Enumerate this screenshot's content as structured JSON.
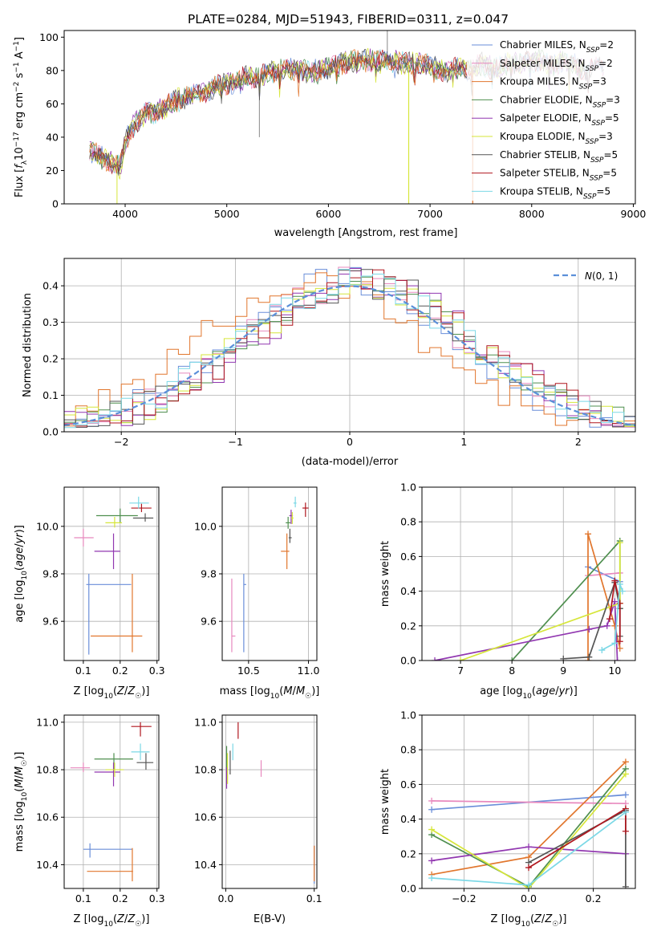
{
  "title": "PLATE=0284, MJD=51943, FIBERID=0311, z=0.047",
  "series_colors": [
    "#6a8ed9",
    "#e889be",
    "#e1762d",
    "#4f8f4f",
    "#9137b0",
    "#d6e63a",
    "#555555",
    "#b0171f",
    "#7bd8e6"
  ],
  "chart_data": [
    {
      "type": "line",
      "name": "spectrum",
      "xlabel": "wavelength [Angstrom, rest frame]",
      "ylabel": "Flux [f_λ 10^-17 erg cm^-2 s^-1 A^-1]",
      "xlim": [
        3400,
        9020
      ],
      "ylim": [
        0,
        104
      ],
      "xticks": [
        4000,
        5000,
        6000,
        7000,
        8000,
        9000
      ],
      "yticks": [
        0,
        20,
        40,
        60,
        80,
        100
      ],
      "grid": false,
      "legend_position": "right",
      "legend": [
        "Chabrier MILES, N_SSP=2",
        "Salpeter MILES, N_SSP=2",
        "Kroupa MILES, N_SSP=3",
        "Chabrier ELODIE, N_SSP=3",
        "Salpeter ELODIE, N_SSP=5",
        "Kroupa ELODIE, N_SSP=3",
        "Chabrier STELIB, N_SSP=5",
        "Salpeter STELIB, N_SSP=5",
        "Kroupa STELIB, N_SSP=5"
      ],
      "continuum_x": [
        3650,
        3700,
        3800,
        3900,
        3950,
        4000,
        4050,
        4100,
        4200,
        4300,
        4400,
        4500,
        4600,
        4700,
        4800,
        4900,
        5000,
        5100,
        5200,
        5300,
        5400,
        5500,
        5600,
        5700,
        5800,
        5900,
        6000,
        6100,
        6200,
        6300,
        6400,
        6500,
        6600,
        6700,
        6800,
        6900,
        7000,
        7100,
        7200,
        7300,
        7400,
        7500,
        7600,
        7700,
        7800,
        7900,
        8000,
        8100,
        8200,
        8300,
        8400,
        8500,
        8600,
        8700
      ],
      "continuum_y": [
        32,
        30,
        27,
        24,
        22,
        36,
        44,
        48,
        54,
        55,
        58,
        62,
        64,
        66,
        68,
        70,
        72,
        74,
        76,
        75,
        79,
        80,
        80,
        81,
        79,
        80,
        82,
        83,
        86,
        86,
        86,
        85,
        86,
        85,
        84,
        85,
        82,
        81,
        80,
        82,
        80,
        84,
        82,
        82,
        85,
        84,
        86,
        86,
        83,
        85,
        84,
        80,
        82,
        82
      ],
      "model_cutoffs_x": [
        3920,
        6790,
        7420
      ]
    },
    {
      "type": "step",
      "name": "residual-distribution",
      "xlabel": "(data-model)/error",
      "ylabel": "Normed distribution",
      "xlim": [
        -2.5,
        2.5
      ],
      "ylim": [
        0,
        0.475
      ],
      "xticks": [
        -2,
        -1,
        0,
        1,
        2
      ],
      "yticks": [
        0.0,
        0.1,
        0.2,
        0.3,
        0.4
      ],
      "grid": true,
      "legend_position": "upper right",
      "legend": [
        "N(0,1)"
      ],
      "legend_color": "#5b8fd9"
    },
    {
      "type": "scatter",
      "name": "z-vs-age",
      "xlabel": "Z [log10(Z/Z☉)]",
      "ylabel": "age [log10(age/yr)]",
      "xlim": [
        0.048,
        0.305
      ],
      "ylim": [
        9.435,
        10.165
      ],
      "xticks": [
        0.1,
        0.2,
        0.3
      ],
      "yticks": [
        9.6,
        9.8,
        10.0
      ],
      "grid": true,
      "points": [
        {
          "x": 0.115,
          "xerr": [
            0.108,
            0.23
          ],
          "y": 9.755,
          "yerr": [
            9.46,
            9.8
          ]
        },
        {
          "x": 0.1,
          "xerr": [
            0.075,
            0.128
          ],
          "y": 9.952,
          "yerr": [
            9.915,
            9.99
          ]
        },
        {
          "x": 0.233,
          "xerr": [
            0.12,
            0.26
          ],
          "y": 9.538,
          "yerr": [
            9.47,
            9.8
          ]
        },
        {
          "x": 0.2,
          "xerr": [
            0.135,
            0.248
          ],
          "y": 10.045,
          "yerr": [
            10.015,
            10.075
          ]
        },
        {
          "x": 0.182,
          "xerr": [
            0.13,
            0.2
          ],
          "y": 9.895,
          "yerr": [
            9.82,
            9.97
          ]
        },
        {
          "x": 0.185,
          "xerr": [
            0.16,
            0.205
          ],
          "y": 10.015,
          "yerr": [
            9.995,
            10.04
          ]
        },
        {
          "x": 0.268,
          "xerr": [
            0.235,
            0.29
          ],
          "y": 10.035,
          "yerr": [
            10.02,
            10.055
          ]
        },
        {
          "x": 0.258,
          "xerr": [
            0.23,
            0.285
          ],
          "y": 10.077,
          "yerr": [
            10.06,
            10.095
          ]
        },
        {
          "x": 0.25,
          "xerr": [
            0.225,
            0.278
          ],
          "y": 10.098,
          "yerr": [
            10.075,
            10.125
          ]
        }
      ]
    },
    {
      "type": "scatter",
      "name": "mass-vs-age",
      "xlabel": "mass [log10(M/M☉)]",
      "ylabel": "",
      "xlim": [
        10.28,
        11.07
      ],
      "ylim": [
        9.435,
        10.165
      ],
      "xticks": [
        10.5,
        11.0
      ],
      "yticks": [
        9.6,
        9.8,
        10.0
      ],
      "grid": true,
      "points": [
        {
          "x": 10.46,
          "xerr": [
            10.46,
            10.48
          ],
          "y": 9.755,
          "yerr": [
            9.47,
            9.8
          ]
        },
        {
          "x": 10.36,
          "xerr": [
            10.36,
            10.39
          ],
          "y": 9.538,
          "yerr": [
            9.47,
            9.78
          ]
        },
        {
          "x": 10.82,
          "xerr": [
            10.77,
            10.84
          ],
          "y": 9.895,
          "yerr": [
            9.82,
            9.97
          ]
        },
        {
          "x": 10.83,
          "xerr": [
            10.81,
            10.85
          ],
          "y": 10.015,
          "yerr": [
            9.99,
            10.04
          ]
        },
        {
          "x": 10.855,
          "xerr": [
            10.84,
            10.87
          ],
          "y": 10.045,
          "yerr": [
            10.01,
            10.07
          ]
        },
        {
          "x": 10.865,
          "xerr": [
            10.855,
            10.875
          ],
          "y": 10.035,
          "yerr": [
            10.01,
            10.06
          ]
        },
        {
          "x": 10.845,
          "xerr": [
            10.835,
            10.86
          ],
          "y": 9.952,
          "yerr": [
            9.93,
            9.99
          ]
        },
        {
          "x": 10.975,
          "xerr": [
            10.95,
            11.0
          ],
          "y": 10.077,
          "yerr": [
            10.04,
            10.1
          ]
        },
        {
          "x": 10.89,
          "xerr": [
            10.875,
            10.9
          ],
          "y": 10.098,
          "yerr": [
            10.08,
            10.125
          ]
        }
      ]
    },
    {
      "type": "line",
      "name": "age-vs-mass-weight",
      "xlabel": "age [log10(age/yr)]",
      "ylabel": "mass weight",
      "xlim": [
        6.25,
        10.4
      ],
      "ylim": [
        0,
        1
      ],
      "xticks": [
        7,
        8,
        9,
        10
      ],
      "yticks": [
        0.0,
        0.2,
        0.4,
        0.6,
        0.8,
        1.0
      ],
      "grid": true,
      "series": [
        {
          "x": [
            9.48,
            10.1
          ],
          "y": [
            0.54,
            0.455
          ]
        },
        {
          "x": [
            9.48,
            10.1
          ],
          "y": [
            0.49,
            0.505
          ]
        },
        {
          "x": [
            9.48,
            9.48,
            10.0,
            10.1
          ],
          "y": [
            0.0,
            0.73,
            0.2,
            0.07
          ]
        },
        {
          "x": [
            8.0,
            10.1,
            10.1
          ],
          "y": [
            0.0,
            0.69,
            0.3
          ]
        },
        {
          "x": [
            6.5,
            9.5,
            9.85,
            10.0,
            10.05
          ],
          "y": [
            0.0,
            0.18,
            0.2,
            0.34,
            0.0
          ]
        },
        {
          "x": [
            7.0,
            10.1,
            10.1
          ],
          "y": [
            0.0,
            0.33,
            0.68
          ]
        },
        {
          "x": [
            9.0,
            9.5,
            10.0,
            10.1,
            10.1
          ],
          "y": [
            0.01,
            0.02,
            0.45,
            0.3,
            0.14
          ]
        },
        {
          "x": [
            9.9,
            10.0,
            10.1,
            10.1
          ],
          "y": [
            0.24,
            0.46,
            0.33,
            0.11
          ]
        },
        {
          "x": [
            9.75,
            10.0,
            10.1,
            10.15
          ],
          "y": [
            0.06,
            0.1,
            0.44,
            0.4
          ]
        }
      ]
    },
    {
      "type": "scatter",
      "name": "z-vs-mass",
      "xlabel": "Z [log10(Z/Z☉)]",
      "ylabel": "mass [log10(M/M☉)]",
      "xlim": [
        0.048,
        0.305
      ],
      "ylim": [
        10.3,
        11.03
      ],
      "xticks": [
        0.1,
        0.2,
        0.3
      ],
      "yticks": [
        10.4,
        10.6,
        10.8,
        11.0
      ],
      "grid": true,
      "points": [
        {
          "x": 0.118,
          "xerr": [
            0.1,
            0.232
          ],
          "y": 10.465,
          "yerr": [
            10.43,
            10.49
          ]
        },
        {
          "x": 0.1,
          "xerr": [
            0.065,
            0.118
          ],
          "y": 10.808,
          "yerr": [
            10.79,
            10.83
          ]
        },
        {
          "x": 0.233,
          "xerr": [
            0.11,
            0.235
          ],
          "y": 10.372,
          "yerr": [
            10.33,
            10.47
          ]
        },
        {
          "x": 0.183,
          "xerr": [
            0.13,
            0.235
          ],
          "y": 10.845,
          "yerr": [
            10.8,
            10.87
          ]
        },
        {
          "x": 0.182,
          "xerr": [
            0.13,
            0.2
          ],
          "y": 10.79,
          "yerr": [
            10.73,
            10.83
          ]
        },
        {
          "x": 0.185,
          "xerr": [
            0.16,
            0.21
          ],
          "y": 10.8,
          "yerr": [
            10.77,
            10.83
          ]
        },
        {
          "x": 0.27,
          "xerr": [
            0.245,
            0.29
          ],
          "y": 10.83,
          "yerr": [
            10.8,
            10.87
          ]
        },
        {
          "x": 0.255,
          "xerr": [
            0.23,
            0.285
          ],
          "y": 10.982,
          "yerr": [
            10.94,
            11.0
          ]
        },
        {
          "x": 0.255,
          "xerr": [
            0.23,
            0.28
          ],
          "y": 10.875,
          "yerr": [
            10.84,
            10.91
          ]
        }
      ]
    },
    {
      "type": "scatter",
      "name": "ebv-vs-mass",
      "xlabel": "E(B-V)",
      "ylabel": "",
      "xlim": [
        -0.004,
        0.103
      ],
      "ylim": [
        10.3,
        11.03
      ],
      "xticks": [
        0.0,
        0.1
      ],
      "yticks": [
        10.4,
        10.6,
        10.8,
        11.0
      ],
      "grid": true,
      "points": [
        {
          "x": 0.1,
          "xerr": [
            0.1,
            0.1
          ],
          "y": 10.4,
          "yerr": [
            10.32,
            10.48
          ]
        },
        {
          "x": 0.04,
          "xerr": [
            0.04,
            0.04
          ],
          "y": 10.81,
          "yerr": [
            10.77,
            10.84
          ]
        },
        {
          "x": 0.1,
          "xerr": [
            0.1,
            0.1
          ],
          "y": 10.37,
          "yerr": [
            10.33,
            10.48
          ]
        },
        {
          "x": 0.001,
          "xerr": [
            0.001,
            0.001
          ],
          "y": 10.85,
          "yerr": [
            10.8,
            10.9
          ]
        },
        {
          "x": 0.001,
          "xerr": [
            0.001,
            0.001
          ],
          "y": 10.77,
          "yerr": [
            10.72,
            10.81
          ]
        },
        {
          "x": 0.002,
          "xerr": [
            0.002,
            0.002
          ],
          "y": 10.8,
          "yerr": [
            10.74,
            10.87
          ]
        },
        {
          "x": 0.005,
          "xerr": [
            0.005,
            0.005
          ],
          "y": 10.83,
          "yerr": [
            10.78,
            10.88
          ]
        },
        {
          "x": 0.014,
          "xerr": [
            0.014,
            0.014
          ],
          "y": 10.96,
          "yerr": [
            10.93,
            11.0
          ]
        },
        {
          "x": 0.008,
          "xerr": [
            0.008,
            0.008
          ],
          "y": 10.875,
          "yerr": [
            10.84,
            10.91
          ]
        }
      ]
    },
    {
      "type": "line",
      "name": "z-vs-mass-weight",
      "xlabel": "Z [log10(Z/Z☉)]",
      "ylabel": "mass weight",
      "xlim": [
        -0.33,
        0.33
      ],
      "ylim": [
        0,
        1
      ],
      "xticks": [
        -0.2,
        0.0,
        0.2
      ],
      "yticks": [
        0.0,
        0.2,
        0.4,
        0.6,
        0.8,
        1.0
      ],
      "grid": true,
      "series": [
        {
          "x": [
            -0.3,
            0.3
          ],
          "y": [
            0.455,
            0.54
          ]
        },
        {
          "x": [
            -0.3,
            0.3
          ],
          "y": [
            0.505,
            0.49
          ]
        },
        {
          "x": [
            -0.3,
            0.0,
            0.3
          ],
          "y": [
            0.08,
            0.18,
            0.73
          ]
        },
        {
          "x": [
            -0.3,
            0.0,
            0.3
          ],
          "y": [
            0.31,
            0.01,
            0.69
          ]
        },
        {
          "x": [
            -0.3,
            0.0,
            0.3
          ],
          "y": [
            0.16,
            0.24,
            0.2
          ]
        },
        {
          "x": [
            -0.3,
            0.0,
            0.3
          ],
          "y": [
            0.34,
            0.0,
            0.66
          ]
        },
        {
          "x": [
            0.0,
            0.3,
            0.3
          ],
          "y": [
            0.15,
            0.45,
            0.01
          ]
        },
        {
          "x": [
            0.0,
            0.3,
            0.3
          ],
          "y": [
            0.12,
            0.46,
            0.33
          ]
        },
        {
          "x": [
            -0.3,
            0.0,
            0.3
          ],
          "y": [
            0.06,
            0.02,
            0.44
          ]
        }
      ]
    }
  ]
}
